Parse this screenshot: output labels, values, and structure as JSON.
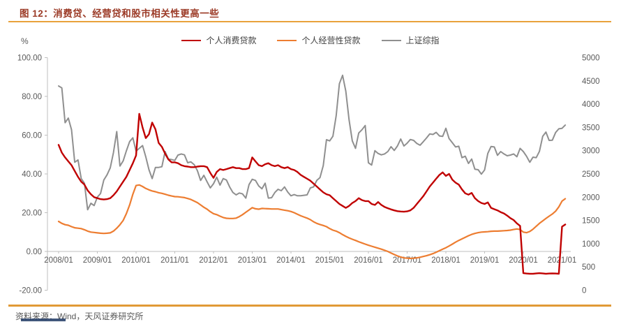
{
  "header": {
    "title": "图 12：消费贷、经营贷和股市相关性更高一些"
  },
  "footer": {
    "source_text": "资料来源：Wind，天风证券研究所"
  },
  "theme": {
    "rule_orange": "#E9A23B",
    "title_color": "#9B3A26",
    "text_gray": "#595959",
    "axis_gray": "#BFBFBF",
    "navy_bar": "#1F3864"
  },
  "chart_data": {
    "type": "line",
    "title": "图 12：消费贷、经营贷和股市相关性更高一些",
    "x_start": "2008/01",
    "x_frequency": "monthly",
    "x_tick_labels": [
      "2008/01",
      "2009/01",
      "2010/01",
      "2011/01",
      "2012/01",
      "2013/01",
      "2014/01",
      "2015/01",
      "2016/01",
      "2017/01",
      "2018/01",
      "2019/01",
      "2020/01",
      "2021/01"
    ],
    "left_axis": {
      "unit": "%",
      "min": -20,
      "max": 100,
      "tick_labels": [
        "100.00",
        "80.00",
        "60.00",
        "40.00",
        "20.00",
        "0.00",
        "-20.00"
      ]
    },
    "right_axis": {
      "min": 0,
      "max": 5000,
      "tick_labels": [
        "5000",
        "4500",
        "4000",
        "3500",
        "3000",
        "2500",
        "2000",
        "1500",
        "1000",
        "500",
        "0"
      ]
    },
    "grid": "off",
    "legend_position": "top-center",
    "series": [
      {
        "key": "consumer-loan",
        "name": "个人消费贷款",
        "color": "#C00000",
        "width": 2.4,
        "axis": "left",
        "values": [
          55,
          51,
          48.5,
          46.5,
          44.5,
          41.5,
          38.5,
          36,
          34.5,
          31.5,
          29.5,
          28,
          27.5,
          27,
          26.8,
          27,
          27.5,
          29,
          31,
          33.5,
          36,
          38.5,
          42,
          45.5,
          49.5,
          71,
          64,
          58.5,
          60.5,
          66.5,
          63,
          56,
          54,
          50.5,
          47.5,
          46,
          46,
          45.5,
          44.5,
          44,
          43.8,
          43.5,
          43.5,
          43.8,
          44,
          44,
          43.5,
          40.5,
          38,
          41,
          42.5,
          42,
          42.5,
          43,
          43.5,
          43,
          43,
          42.5,
          42.5,
          43,
          48.5,
          46.5,
          44.5,
          44,
          45,
          45.5,
          44.5,
          44,
          44.5,
          43.5,
          43,
          43.5,
          42.5,
          42,
          41,
          39.5,
          38.5,
          37.5,
          36.5,
          35,
          33.5,
          32,
          30.5,
          29.5,
          29,
          27.5,
          26,
          24.5,
          23.5,
          22.5,
          23.5,
          25,
          26,
          27.5,
          26.5,
          26,
          26,
          24.5,
          24,
          25.5,
          24,
          23,
          22.3,
          21.7,
          21.2,
          20.8,
          20.6,
          20.5,
          20.7,
          21.2,
          22.5,
          24.5,
          26.5,
          28.5,
          31,
          33.5,
          35.5,
          37.5,
          39.5,
          40.8,
          39,
          40,
          37,
          35.5,
          34.5,
          32,
          30,
          29.3,
          30.2,
          27.5,
          26,
          25,
          24.5,
          25.3,
          22.5,
          21.8,
          21.2,
          20.3,
          19.6,
          18.5,
          17.2,
          16.2,
          14.5,
          13.2,
          -11.2,
          -11.4,
          -11.5,
          -11.5,
          -11.3,
          -11.2,
          -11.3,
          -11.5,
          -11.4,
          -11.3,
          -11.4,
          -11.5,
          12.8,
          13.9
        ]
      },
      {
        "key": "business-loan",
        "name": "个人经营性贷款",
        "color": "#ED7D31",
        "width": 2.2,
        "axis": "left",
        "values": [
          15.5,
          14.5,
          13.8,
          13.5,
          12.8,
          12.2,
          12,
          11.8,
          11.2,
          10.5,
          10,
          9.8,
          9.6,
          9.4,
          9.3,
          9.4,
          9.6,
          10.5,
          12,
          13.8,
          16,
          19.5,
          24,
          29.5,
          34,
          34.3,
          33.5,
          32.5,
          31.8,
          31.2,
          30.8,
          30.3,
          30,
          29.5,
          29,
          28.6,
          28.3,
          28.2,
          28,
          27.8,
          27.3,
          26.8,
          26,
          25.2,
          24,
          22.8,
          21.8,
          20.5,
          19.5,
          19,
          18.2,
          17.5,
          17.1,
          17,
          17,
          17.2,
          18,
          19,
          20.2,
          21.4,
          22.6,
          22,
          21.8,
          22.2,
          22.1,
          22,
          21.9,
          21.9,
          21.9,
          21.6,
          21.3,
          21,
          20.6,
          20,
          19.2,
          18.4,
          17.8,
          17.2,
          16.4,
          15.3,
          14.5,
          13.9,
          13.4,
          12.8,
          11.8,
          11,
          10.5,
          9.7,
          8.7,
          7.8,
          7,
          6.3,
          5.7,
          5,
          4.4,
          3.8,
          3.2,
          2.7,
          2.2,
          1.7,
          1.2,
          0.6,
          0,
          -0.8,
          -1.6,
          -2.3,
          -2.9,
          -3.3,
          -3.5,
          -3.6,
          -3.5,
          -3.3,
          -3,
          -2.6,
          -2.2,
          -1.7,
          -1.1,
          -0.4,
          0.4,
          1.2,
          1.9,
          2.8,
          3.8,
          4.8,
          5.7,
          6.5,
          7.3,
          8.1,
          8.8,
          9.3,
          9.7,
          10,
          10.1,
          10.2,
          10.4,
          10.5,
          10.5,
          10.6,
          10.7,
          10.8,
          11,
          11.3,
          11.6,
          11.3,
          10,
          9.7,
          10.3,
          11.5,
          13,
          14.5,
          15.8,
          17,
          18.2,
          19.3,
          20.8,
          23,
          26,
          27.2
        ]
      },
      {
        "key": "sse-index",
        "name": "上证综指",
        "color": "#8F8F8F",
        "width": 2,
        "axis": "right",
        "values": [
          4390,
          4350,
          3600,
          3700,
          3450,
          2750,
          2800,
          2400,
          2300,
          1730,
          1870,
          1820,
          2000,
          2080,
          2370,
          2480,
          2630,
          2960,
          3410,
          2670,
          2780,
          2995,
          3195,
          3277,
          2990,
          3050,
          3110,
          2870,
          2590,
          2400,
          2640,
          2640,
          2655,
          2980,
          2820,
          2810,
          2790,
          2905,
          2930,
          2910,
          2740,
          2760,
          2700,
          2570,
          2360,
          2470,
          2330,
          2200,
          2290,
          2430,
          2260,
          2400,
          2370,
          2220,
          2100,
          2050,
          2090,
          2070,
          1980,
          2270,
          2385,
          2360,
          2240,
          2180,
          2300,
          1980,
          1990,
          2100,
          2170,
          2140,
          2220,
          2110,
          2030,
          2055,
          2030,
          2030,
          2040,
          2050,
          2200,
          2220,
          2360,
          2420,
          2680,
          3235,
          3210,
          3310,
          3750,
          4440,
          4620,
          4280,
          3660,
          3210,
          3050,
          3380,
          3450,
          3540,
          2740,
          2690,
          3000,
          2940,
          2910,
          2930,
          2980,
          3085,
          3005,
          3100,
          3250,
          3100,
          3160,
          3240,
          3220,
          3155,
          3117,
          3192,
          3273,
          3360,
          3348,
          3393,
          3317,
          3307,
          3480,
          3260,
          3170,
          3080,
          3095,
          2850,
          2880,
          2725,
          2820,
          2600,
          2590,
          2495,
          2585,
          2940,
          3090,
          3080,
          2900,
          2980,
          2930,
          2890,
          2905,
          2930,
          2870,
          3050,
          2980,
          2880,
          2750,
          2860,
          2850,
          2985,
          3310,
          3400,
          3220,
          3225,
          3390,
          3470,
          3480,
          3550
        ]
      }
    ]
  }
}
